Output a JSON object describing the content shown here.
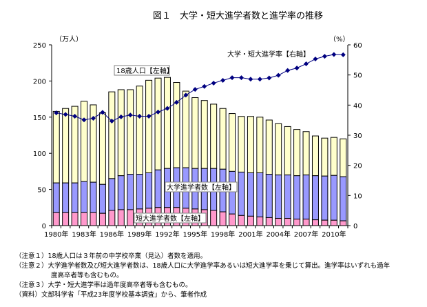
{
  "chart_data": {
    "type": "bar",
    "title": "図１　大学・短大進学者数と進学率の推移",
    "left_axis": {
      "label": "（万人）",
      "range": [
        0,
        250
      ],
      "ticks": [
        0,
        50,
        100,
        150,
        200,
        250
      ]
    },
    "right_axis": {
      "label": "（%）",
      "range": [
        0,
        60
      ],
      "ticks": [
        0,
        10,
        20,
        30,
        40,
        50,
        60
      ]
    },
    "grid": false,
    "categories": [
      1980,
      1981,
      1982,
      1983,
      1984,
      1985,
      1986,
      1987,
      1988,
      1989,
      1990,
      1991,
      1992,
      1993,
      1994,
      1995,
      1996,
      1997,
      1998,
      1999,
      2000,
      2001,
      2002,
      2003,
      2004,
      2005,
      2006,
      2007,
      2008,
      2009,
      2010,
      2011
    ],
    "x_tick_labels": [
      "1980年",
      "1983年",
      "1986年",
      "1989年",
      "1992年",
      "1995年",
      "1998年",
      "2001年",
      "2004年",
      "2007年",
      "2010年"
    ],
    "series": [
      {
        "name": "短大進学者数【左軸】",
        "kind": "stacked-bar",
        "axis": "left",
        "color": "#ff99cc",
        "values": [
          18,
          18,
          18,
          18,
          18,
          17,
          21,
          22,
          22,
          23,
          24,
          25,
          25,
          25,
          24,
          23,
          22,
          21,
          19,
          16,
          14,
          13,
          12,
          11,
          10,
          10,
          9,
          9,
          8,
          7.5,
          7.4,
          6.6
        ]
      },
      {
        "name": "大学進学者数【左軸】",
        "kind": "stacked-bar",
        "axis": "left",
        "color": "#9999ff",
        "values": [
          41,
          41,
          41,
          43,
          42,
          40,
          44,
          47,
          49,
          48,
          49,
          52,
          54,
          55,
          56,
          56,
          57,
          58,
          59,
          59,
          60,
          60,
          61,
          60,
          60,
          60,
          60,
          61,
          61,
          61,
          62,
          61
        ]
      },
      {
        "name": "18歳人口【左軸】",
        "kind": "bar-total",
        "axis": "left",
        "color": "#ffffcc",
        "values": [
          158,
          162,
          165,
          172,
          167,
          156,
          185,
          188,
          188,
          193,
          201,
          204,
          205,
          198,
          186,
          177,
          173,
          168,
          162,
          155,
          151,
          151,
          150,
          146,
          141,
          137,
          133,
          130,
          124,
          121,
          122,
          120
        ]
      },
      {
        "name": "大学・短大進学率【右軸】",
        "kind": "line",
        "axis": "right",
        "color": "#000080",
        "values": [
          37.4,
          36.9,
          36.3,
          35.1,
          35.6,
          37.6,
          34.7,
          36.1,
          36.7,
          36.3,
          36.3,
          37.7,
          38.9,
          40.9,
          43.3,
          45.2,
          46.2,
          47.3,
          48.2,
          49.1,
          49.1,
          48.6,
          48.6,
          49.0,
          49.9,
          51.5,
          52.3,
          53.7,
          55.3,
          56.2,
          56.8,
          56.7
        ]
      }
    ]
  },
  "notes": [
    "（注意１）18歳人口は３年前の中学校卒業（見込）者数を適用。",
    "（注意２）大学進学者数及び短大進学者数は、18歳人口に大学進学率あるいは短大進学率を乗じて算出。進学率はいずれも過年",
    "度高卒者等も含むもの。",
    "（注意３）大学・短大進学率は過年度高卒者等も含むもの。",
    "（資料）文部科学省「平成23年度学校基本調査」から、筆者作成"
  ]
}
